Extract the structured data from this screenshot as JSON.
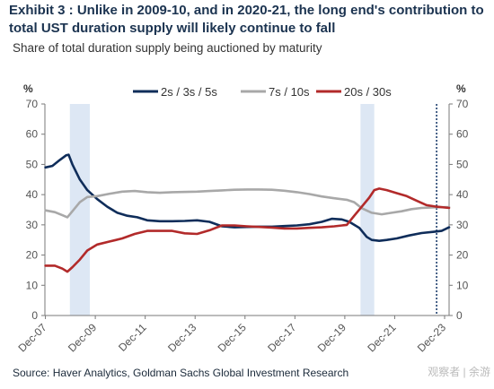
{
  "header": {
    "title": "Exhibit 3 : Unlike in 2009-10, and in 2020-21, the long end's contribution to total UST duration supply will likely continue to fall",
    "subtitle": "Share of total duration supply being auctioned by maturity"
  },
  "footer": {
    "source": "Source: Haver Analytics, Goldman Sachs Global Investment Research",
    "watermark": "观察者 | 余游"
  },
  "chart_data": {
    "type": "line",
    "ylabel_left": "%",
    "ylabel_right": "%",
    "ylim": [
      0,
      70
    ],
    "yticks": [
      0,
      10,
      20,
      30,
      40,
      50,
      60,
      70
    ],
    "xlim": [
      2007.9,
      2024.1
    ],
    "xticks": [
      {
        "x": 2007.92,
        "label": "Dec-07"
      },
      {
        "x": 2009.92,
        "label": "Dec-09"
      },
      {
        "x": 2011.92,
        "label": "Dec-11"
      },
      {
        "x": 2013.92,
        "label": "Dec-13"
      },
      {
        "x": 2015.92,
        "label": "Dec-15"
      },
      {
        "x": 2017.92,
        "label": "Dec-17"
      },
      {
        "x": 2019.92,
        "label": "Dec-19"
      },
      {
        "x": 2021.92,
        "label": "Dec-21"
      },
      {
        "x": 2023.92,
        "label": "Dec-23"
      }
    ],
    "shaded_periods": [
      [
        2008.9,
        2009.7
      ],
      [
        2020.55,
        2021.1
      ]
    ],
    "vline": 2023.6,
    "grid": false,
    "legend_position": "top",
    "series": [
      {
        "name": "2s / 3s / 5s",
        "color": "#0f2d5a",
        "x": [
          2007.92,
          2008.2,
          2008.5,
          2008.75,
          2008.85,
          2009.0,
          2009.3,
          2009.6,
          2010.0,
          2010.4,
          2010.8,
          2011.2,
          2011.6,
          2012.0,
          2012.5,
          2013.0,
          2013.5,
          2014.0,
          2014.5,
          2015.0,
          2015.5,
          2016.0,
          2016.5,
          2017.0,
          2017.5,
          2018.0,
          2018.5,
          2019.0,
          2019.4,
          2019.8,
          2020.1,
          2020.5,
          2020.8,
          2021.0,
          2021.3,
          2021.6,
          2022.0,
          2022.5,
          2023.0,
          2023.5,
          2023.8,
          2024.1
        ],
        "y": [
          49,
          49.5,
          51.5,
          53,
          53.2,
          50,
          45,
          41.5,
          38.5,
          36,
          34,
          33,
          32.5,
          31.5,
          31.2,
          31.2,
          31.3,
          31.5,
          31,
          29.5,
          29.2,
          29.3,
          29.4,
          29.4,
          29.6,
          29.8,
          30.2,
          31,
          32,
          31.8,
          31,
          29,
          26,
          25,
          24.7,
          25,
          25.5,
          26.5,
          27.3,
          27.7,
          28,
          29.2
        ]
      },
      {
        "name": "7s / 10s",
        "color": "#a8a8a8",
        "x": [
          2007.92,
          2008.3,
          2008.6,
          2008.8,
          2009.0,
          2009.3,
          2009.6,
          2010.0,
          2010.5,
          2011.0,
          2011.5,
          2012.0,
          2012.5,
          2013.0,
          2014.0,
          2014.5,
          2015.0,
          2015.5,
          2016.0,
          2016.5,
          2017.0,
          2017.5,
          2018.0,
          2018.5,
          2019.0,
          2019.5,
          2020.0,
          2020.3,
          2020.6,
          2021.0,
          2021.4,
          2021.8,
          2022.2,
          2022.6,
          2023.0,
          2023.5,
          2024.1
        ],
        "y": [
          34.8,
          34.2,
          33.2,
          32.5,
          34.5,
          37.5,
          39.2,
          39.5,
          40.3,
          41,
          41.2,
          40.8,
          40.6,
          40.8,
          41,
          41.2,
          41.4,
          41.6,
          41.7,
          41.7,
          41.6,
          41.3,
          40.8,
          40.2,
          39.4,
          38.8,
          38.3,
          37.5,
          35.5,
          34,
          33.5,
          34,
          34.5,
          35.2,
          35.6,
          35.8,
          35.9
        ]
      },
      {
        "name": "20s / 30s",
        "color": "#b22a2a",
        "x": [
          2007.92,
          2008.3,
          2008.6,
          2008.8,
          2009.0,
          2009.3,
          2009.6,
          2010.0,
          2010.5,
          2011.0,
          2011.5,
          2012.0,
          2012.5,
          2013.0,
          2013.5,
          2014.0,
          2014.5,
          2015.0,
          2015.5,
          2016.0,
          2016.5,
          2017.0,
          2017.5,
          2018.0,
          2018.5,
          2019.0,
          2019.5,
          2020.0,
          2020.3,
          2020.6,
          2020.9,
          2021.1,
          2021.3,
          2021.6,
          2022.0,
          2022.4,
          2022.8,
          2023.2,
          2023.6,
          2024.1
        ],
        "y": [
          16.5,
          16.5,
          15.5,
          14.5,
          16,
          18.5,
          21.5,
          23.5,
          24.5,
          25.5,
          27,
          28,
          28,
          28,
          27.2,
          27,
          28.2,
          29.8,
          29.8,
          29.5,
          29.3,
          29.1,
          28.8,
          28.8,
          29,
          29.2,
          29.5,
          30,
          33,
          36,
          39,
          41.5,
          42,
          41.5,
          40.5,
          39.5,
          38,
          36.5,
          36,
          35.6
        ]
      }
    ]
  }
}
